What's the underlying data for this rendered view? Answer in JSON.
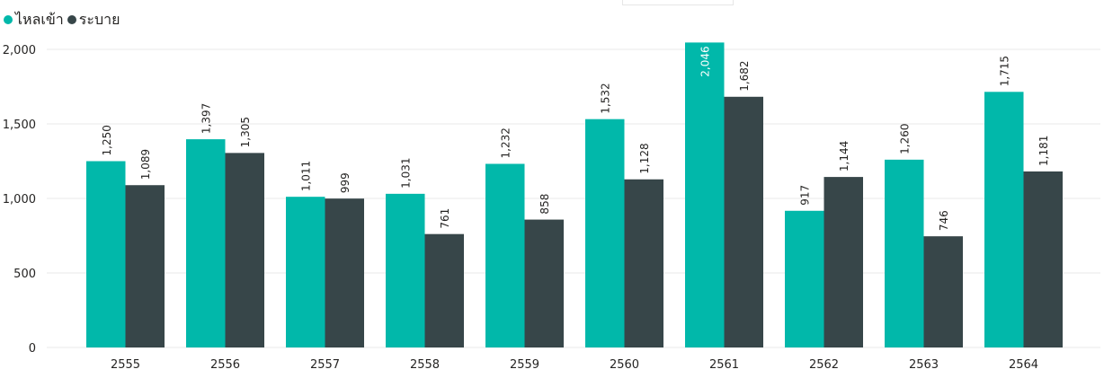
{
  "legend": {
    "items": [
      {
        "label": "ไหลเข้า",
        "color": "#01B8AA"
      },
      {
        "label": "ระบาย",
        "color": "#374649"
      }
    ]
  },
  "chart_data": {
    "type": "bar",
    "categories": [
      "2555",
      "2556",
      "2557",
      "2558",
      "2559",
      "2560",
      "2561",
      "2562",
      "2563",
      "2564"
    ],
    "series": [
      {
        "name": "ไหลเข้า",
        "color": "#01B8AA",
        "values": [
          1250,
          1397,
          1011,
          1031,
          1232,
          1532,
          2046,
          917,
          1260,
          1715
        ],
        "labels": [
          "1,250",
          "1,397",
          "1,011",
          "1,031",
          "1,232",
          "1,532",
          "2,046",
          "917",
          "1,260",
          "1,715"
        ]
      },
      {
        "name": "ระบาย",
        "color": "#374649",
        "values": [
          1089,
          1305,
          999,
          761,
          858,
          1128,
          1682,
          1144,
          746,
          1181
        ],
        "labels": [
          "1,089",
          "1,305",
          "999",
          "761",
          "858",
          "1,128",
          "1,682",
          "1,144",
          "746",
          "1,181"
        ]
      }
    ],
    "yticks": [
      {
        "value": 0,
        "label": "0"
      },
      {
        "value": 500,
        "label": "500"
      },
      {
        "value": 1000,
        "label": "1,000"
      },
      {
        "value": 1500,
        "label": "1,500"
      },
      {
        "value": 2000,
        "label": "2,000"
      }
    ],
    "ylim": [
      0,
      2000
    ],
    "title": "",
    "xlabel": "",
    "ylabel": "",
    "grid": true,
    "legend_position": "top-left"
  }
}
